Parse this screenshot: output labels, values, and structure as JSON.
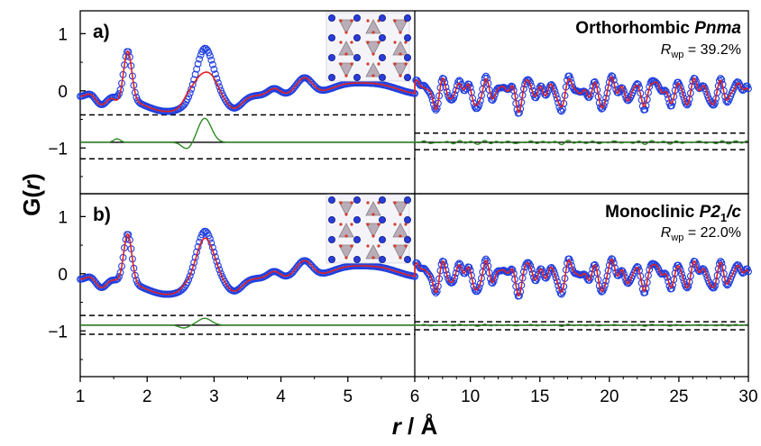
{
  "figure": {
    "ylabel_main": "G(",
    "ylabel_r": "r",
    "ylabel_close": ")",
    "xlabel_r": "r",
    "xlabel_unit": " / Å"
  },
  "colors": {
    "observed": "#1f3fe0",
    "calculated": "#e02020",
    "difference": "#2e8b22",
    "axis": "#000000",
    "dashed": "#000000"
  },
  "chart_data": [
    {
      "type": "line",
      "panel_label": "a)",
      "title_prefix": "Orthorhombic ",
      "title_space_group": "Pnma",
      "rwp_symbol": "R",
      "rwp_sub": "wp",
      "rwp_value": " = 39.2%",
      "x_ticks_left": [
        "1",
        "2",
        "3",
        "4",
        "5",
        "6"
      ],
      "x_ticks_right": [
        "10",
        "15",
        "20",
        "25",
        "30"
      ],
      "x_ranges": {
        "left": [
          1,
          6
        ],
        "right": [
          6,
          30
        ]
      },
      "ylim": [
        -1.8,
        1.4
      ],
      "y_ticks": [
        "1",
        "0",
        "-1"
      ],
      "difference_offset": -0.9,
      "difference_bounds_left": [
        -0.42,
        -1.19
      ],
      "difference_bounds_right": [
        -0.74,
        -1.03
      ],
      "series": [
        {
          "name": "observed",
          "style": "open-circles"
        },
        {
          "name": "calculated",
          "style": "line"
        },
        {
          "name": "difference",
          "style": "line"
        }
      ]
    },
    {
      "type": "line",
      "panel_label": "b)",
      "title_prefix": "Monoclinic ",
      "title_space_group": "P2",
      "title_sub": "1",
      "title_suffix": "/c",
      "rwp_symbol": "R",
      "rwp_sub": "wp",
      "rwp_value": " = 22.0%",
      "x_ticks_left": [
        "1",
        "2",
        "3",
        "4",
        "5",
        "6"
      ],
      "x_ticks_right": [
        "10",
        "15",
        "20",
        "25",
        "30"
      ],
      "x_ranges": {
        "left": [
          1,
          6
        ],
        "right": [
          6,
          30
        ]
      },
      "ylim": [
        -1.8,
        1.4
      ],
      "y_ticks": [
        "1",
        "0",
        "-1"
      ],
      "difference_offset": -0.9,
      "difference_bounds_left": [
        -0.73,
        -1.06
      ],
      "difference_bounds_right": [
        -0.84,
        -0.98
      ],
      "series": [
        {
          "name": "observed",
          "style": "open-circles"
        },
        {
          "name": "calculated",
          "style": "line"
        },
        {
          "name": "difference",
          "style": "line"
        }
      ]
    }
  ],
  "shared_x_ticks": [
    "1",
    "2",
    "3",
    "4",
    "5",
    "6",
    "10",
    "15",
    "20",
    "25",
    "30"
  ]
}
